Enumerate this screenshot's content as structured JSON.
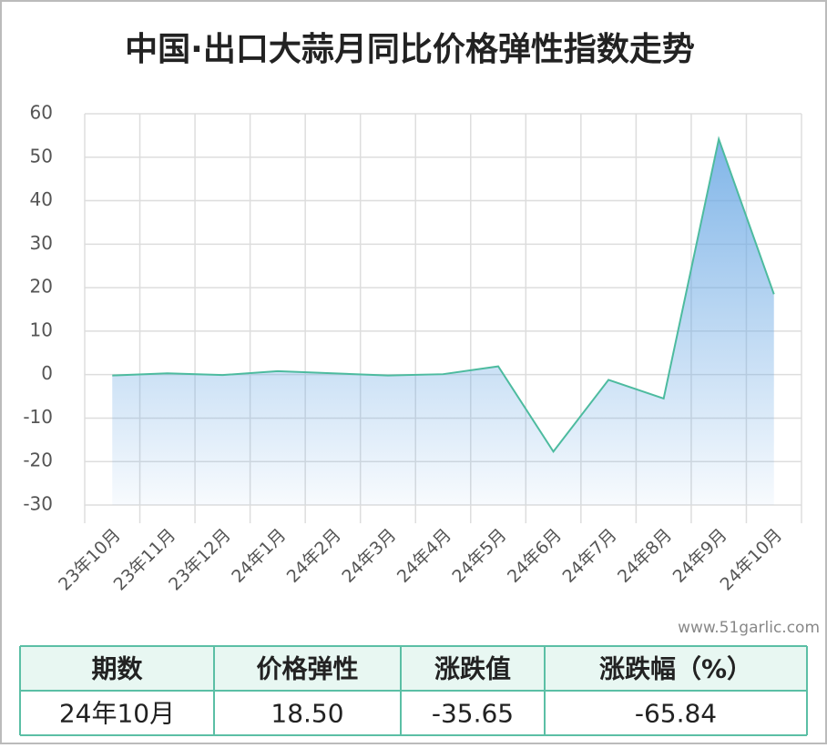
{
  "chart_data": {
    "type": "line",
    "title": "中国·出口大蒜月同比价格弹性指数走势",
    "categories": [
      "23年10月",
      "23年11月",
      "23年12月",
      "24年1月",
      "24年2月",
      "24年3月",
      "24年4月",
      "24年5月",
      "24年6月",
      "24年7月",
      "24年8月",
      "24年9月",
      "24年10月"
    ],
    "series": [
      {
        "name": "价格弹性",
        "color": "#4dbb9f",
        "values": [
          -0.2,
          0.3,
          -0.1,
          0.8,
          0.3,
          -0.2,
          0.1,
          1.9,
          -17.7,
          -1.2,
          -5.5,
          54.15,
          18.5
        ]
      }
    ],
    "area_color": "#6aa8e4",
    "ylim": [
      -30,
      60
    ],
    "yticks": [
      -30,
      -20,
      -10,
      0,
      10,
      20,
      30,
      40,
      50,
      60
    ],
    "grid": true
  },
  "watermark": "www.51garlic.com",
  "table": {
    "header": [
      "期数",
      "价格弹性",
      "涨跌值",
      "涨跌幅（%）"
    ],
    "rows": [
      [
        "24年10月",
        "18.50",
        "-35.65",
        "-65.84"
      ]
    ]
  }
}
